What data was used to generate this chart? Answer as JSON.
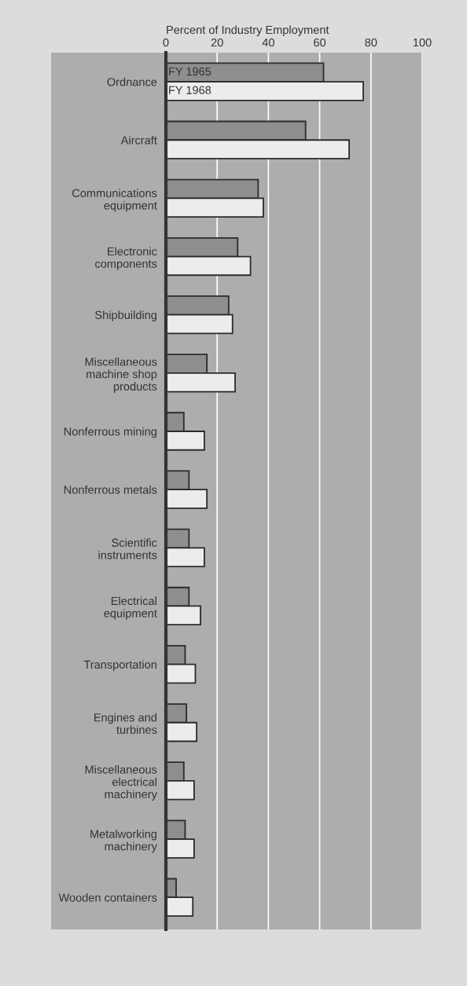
{
  "chart_data": {
    "type": "bar",
    "orientation": "horizontal",
    "xlabel": "Percent of Industry Employment",
    "categories": [
      "Ordnance",
      "Aircraft",
      "Communications\nequipment",
      "Electronic\ncomponents",
      "Shipbuilding",
      "Miscellaneous\nmachine shop\nproducts",
      "Nonferrous mining",
      "Nonferrous metals",
      "Scientific\ninstruments",
      "Electrical\nequipment",
      "Transportation",
      "Engines and\nturbines",
      "Miscellaneous\nelectrical\nmachinery",
      "Metalworking\nmachinery",
      "Wooden containers"
    ],
    "series": [
      {
        "name": "FY 1965",
        "color": "#8e8e8e",
        "values": [
          61.5,
          54.5,
          36,
          28,
          24.5,
          16,
          7,
          9,
          9,
          9,
          7.5,
          8,
          7,
          7.5,
          4
        ]
      },
      {
        "name": "FY 1968",
        "color": "#ececec",
        "values": [
          77,
          71.5,
          38,
          33,
          26,
          27,
          15,
          16,
          15,
          13.5,
          11.5,
          12,
          11,
          11,
          10.5
        ]
      }
    ],
    "xlim": [
      0,
      100
    ],
    "xticks": [
      0,
      20,
      40,
      60,
      80,
      100
    ],
    "grid": "x",
    "legend": false
  }
}
